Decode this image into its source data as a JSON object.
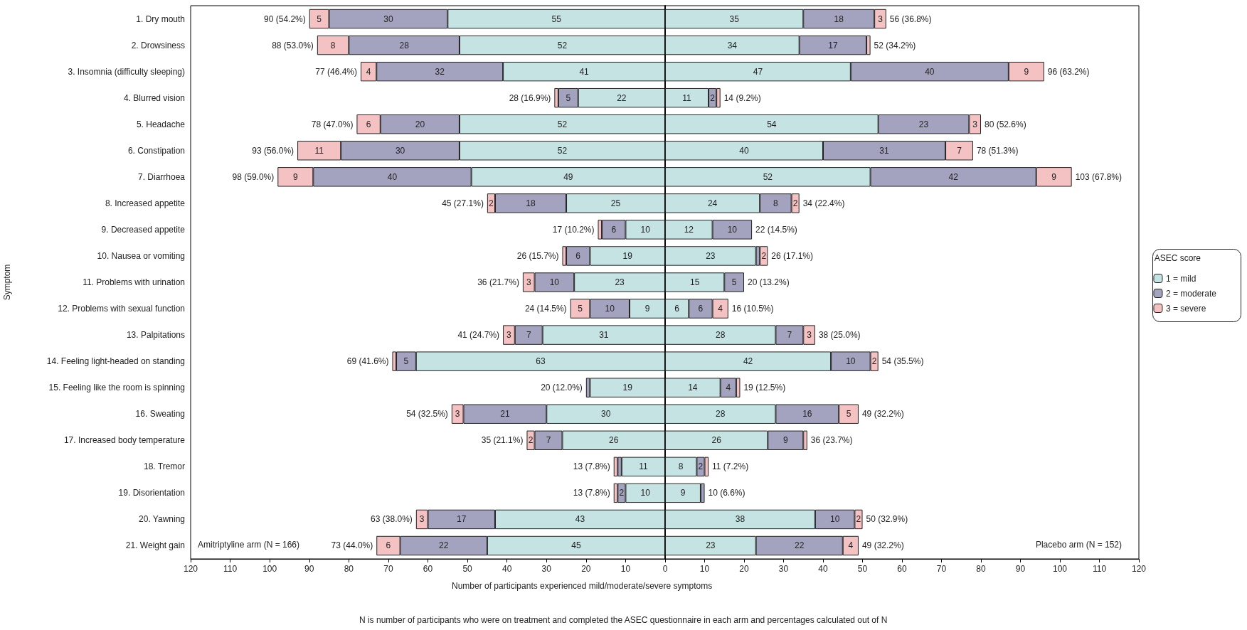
{
  "chart_data": [
    {
      "type": "bar",
      "orientation": "horizontal",
      "stacked": true,
      "xlabel": "Number of participants experienced mild/moderate/severe symptoms",
      "ylabel": "Symptom",
      "grid": false,
      "legend": false,
      "categories": [
        "1. Dry mouth",
        "2. Drowsiness",
        "3. Insomnia (difficulty sleeping)",
        "4. Blurred vision",
        "5. Headache",
        "6. Constipation",
        "7. Diarrhoea",
        "8. Increased appetite",
        "9. Decreased appetite",
        "10. Nausea or vomiting",
        "11. Problems with urination",
        "12. Problems with sexual function",
        "13. Palpitations",
        "14. Feeling light-headed on standing",
        "15. Feeling like the room is spinning",
        "16. Sweating",
        "17. Increased body temperature",
        "18. Tremor",
        "19. Disorientation",
        "20. Yawning",
        "21. Weight gain"
      ],
      "xlim": [
        120,
        0
      ],
      "xticks": [
        120,
        110,
        100,
        90,
        80,
        70,
        60,
        50,
        40,
        30,
        20,
        10,
        0
      ],
      "series": [
        {
          "color": "#c5e3e3",
          "values": [
            55,
            52,
            41,
            22,
            52,
            52,
            49,
            25,
            10,
            19,
            23,
            9,
            31,
            63,
            19,
            30,
            26,
            11,
            10,
            43,
            45
          ],
          "value_labels": [
            "55",
            "52",
            "41",
            "22",
            "52",
            "52",
            "49",
            "25",
            "10",
            "19",
            "23",
            "9",
            "31",
            "63",
            "19",
            "30",
            "26",
            "11",
            "10",
            "43",
            "45"
          ]
        },
        {
          "color": "#a3a3c0",
          "values": [
            30,
            28,
            32,
            5,
            20,
            30,
            40,
            18,
            6,
            6,
            10,
            10,
            7,
            5,
            1,
            21,
            7,
            1,
            2,
            17,
            22
          ],
          "value_labels": [
            "30",
            "28",
            "32",
            "5",
            "20",
            "30",
            "40",
            "18",
            "6",
            "6",
            "10",
            "10",
            "7",
            "5",
            null,
            "21",
            "7",
            null,
            "2",
            "17",
            "22"
          ]
        },
        {
          "color": "#f4c2c2",
          "values": [
            5,
            8,
            4,
            1,
            6,
            11,
            9,
            2,
            1,
            1,
            3,
            5,
            3,
            1,
            0,
            3,
            2,
            1,
            1,
            3,
            6
          ],
          "value_labels": [
            "5",
            "8",
            "4",
            null,
            "6",
            "11",
            "9",
            "2",
            null,
            null,
            "3",
            "5",
            "3",
            null,
            null,
            "3",
            "2",
            null,
            null,
            "3",
            "6"
          ]
        }
      ],
      "totals": [
        "90 (54.2%)",
        "88 (53.0%)",
        "77 (46.4%)",
        "28 (16.9%)",
        "78 (47.0%)",
        "93 (56.0%)",
        "98 (59.0%)",
        "45 (27.1%)",
        "17 (10.2%)",
        "26 (15.7%)",
        "36 (21.7%)",
        "24 (14.5%)",
        "41 (24.7%)",
        "69 (41.6%)",
        "20 (12.0%)",
        "54 (32.5%)",
        "35 (21.1%)",
        "13 (7.8%)",
        "13 (7.8%)",
        "63 (38.0%)",
        "73 (44.0%)"
      ],
      "annotations": [
        "Amitriptyline arm (N = 166)",
        "N is number of participants who were on treatment and completed the ASEC questionnaire in each arm and percentages calculated out of N"
      ]
    },
    {
      "type": "bar",
      "orientation": "horizontal",
      "stacked": true,
      "tick_labels": "x",
      "grid": false,
      "legend_title": "ASEC score",
      "legend": "right",
      "categories": [
        null,
        null,
        null,
        null,
        null,
        null,
        null,
        null,
        null,
        null,
        null,
        null,
        null,
        null,
        null,
        null,
        null,
        null,
        null,
        null,
        null
      ],
      "xlim": [
        0,
        120
      ],
      "xticks": [
        {
          "value": 0,
          "label": null
        },
        10,
        20,
        30,
        40,
        50,
        60,
        70,
        80,
        90,
        100,
        110,
        120
      ],
      "series": [
        {
          "name": "1 = mild",
          "color": "#c5e3e3",
          "values": [
            35,
            34,
            47,
            11,
            54,
            40,
            52,
            24,
            12,
            23,
            15,
            6,
            28,
            42,
            14,
            28,
            26,
            8,
            9,
            38,
            23
          ],
          "value_labels": [
            "35",
            "34",
            "47",
            "11",
            "54",
            "40",
            "52",
            "24",
            "12",
            "23",
            "15",
            "6",
            "28",
            "42",
            "14",
            "28",
            "26",
            "8",
            "9",
            "38",
            "23"
          ]
        },
        {
          "name": "2 = moderate",
          "color": "#a3a3c0",
          "values": [
            18,
            17,
            40,
            2,
            23,
            31,
            42,
            8,
            10,
            1,
            5,
            6,
            7,
            10,
            4,
            16,
            9,
            2,
            1,
            10,
            22
          ],
          "value_labels": [
            "18",
            "17",
            "40",
            "2",
            "23",
            "31",
            "42",
            "8",
            "10",
            null,
            "5",
            "6",
            "7",
            "10",
            "4",
            "16",
            "9",
            "2",
            null,
            "10",
            "22"
          ]
        },
        {
          "name": "3 = severe",
          "color": "#f4c2c2",
          "values": [
            3,
            1,
            9,
            1,
            3,
            7,
            9,
            2,
            0,
            2,
            0,
            4,
            3,
            2,
            1,
            5,
            1,
            1,
            0,
            2,
            4
          ],
          "value_labels": [
            "3",
            null,
            "9",
            null,
            "3",
            "7",
            "9",
            "2",
            null,
            "2",
            null,
            "4",
            "3",
            "2",
            null,
            "5",
            null,
            null,
            null,
            "2",
            "4"
          ]
        }
      ],
      "totals": [
        "56 (36.8%)",
        "52 (34.2%)",
        "96 (63.2%)",
        "14 (9.2%)",
        "80 (52.6%)",
        "78 (51.3%)",
        "103 (67.8%)",
        "34 (22.4%)",
        "22 (14.5%)",
        "26 (17.1%)",
        "20 (13.2%)",
        "16 (10.5%)",
        "38 (25.0%)",
        "54 (35.5%)",
        "19 (12.5%)",
        "49 (32.2%)",
        "36 (23.7%)",
        "11 (7.2%)",
        "10 (6.6%)",
        "50 (32.9%)",
        "49 (32.2%)"
      ],
      "annotations": [
        "Placebo arm (N = 152)"
      ]
    }
  ]
}
